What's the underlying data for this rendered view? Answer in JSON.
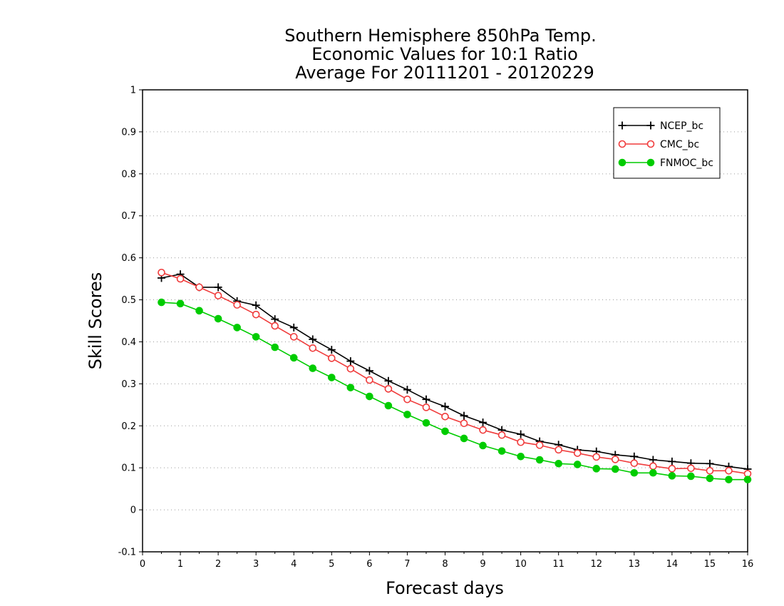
{
  "chart_data": {
    "type": "line",
    "title": [
      "Southern Hemisphere 850hPa Temp.",
      "Economic Values for 10:1 Ratio",
      "Average For 20111201 - 20120229"
    ],
    "xlabel": "Forecast days",
    "ylabel": "Skill Scores",
    "xlim": [
      0,
      16
    ],
    "ylim": [
      -0.1,
      1
    ],
    "xticks": [
      "0",
      "1",
      "2",
      "3",
      "4",
      "5",
      "6",
      "7",
      "8",
      "9",
      "10",
      "11",
      "12",
      "13",
      "14",
      "15",
      "16"
    ],
    "yticks": [
      "-0.1",
      "0",
      "0.1",
      "0.2",
      "0.3",
      "0.4",
      "0.5",
      "0.6",
      "0.7",
      "0.8",
      "0.9",
      "1"
    ],
    "grid": "horizontal dotted",
    "legend_position": "top-right",
    "x": [
      0.5,
      1,
      1.5,
      2,
      2.5,
      3,
      3.5,
      4,
      4.5,
      5,
      5.5,
      6,
      6.5,
      7,
      7.5,
      8,
      8.5,
      9,
      9.5,
      10,
      10.5,
      11,
      11.5,
      12,
      12.5,
      13,
      13.5,
      14,
      14.5,
      15,
      15.5,
      16
    ],
    "series": [
      {
        "name": "NCEP_bc",
        "color": "#000000",
        "marker": "plus",
        "values": [
          0.552,
          0.561,
          0.53,
          0.53,
          0.497,
          0.487,
          0.454,
          0.434,
          0.406,
          0.381,
          0.354,
          0.331,
          0.307,
          0.286,
          0.263,
          0.246,
          0.224,
          0.208,
          0.19,
          0.18,
          0.163,
          0.155,
          0.143,
          0.139,
          0.131,
          0.127,
          0.119,
          0.115,
          0.111,
          0.11,
          0.103,
          0.097
        ]
      },
      {
        "name": "CMC_bc",
        "color": "#f03c3c",
        "marker": "open-circle",
        "values": [
          0.565,
          0.55,
          0.53,
          0.51,
          0.488,
          0.465,
          0.438,
          0.412,
          0.385,
          0.361,
          0.336,
          0.309,
          0.288,
          0.263,
          0.244,
          0.222,
          0.206,
          0.19,
          0.178,
          0.161,
          0.154,
          0.143,
          0.135,
          0.126,
          0.12,
          0.111,
          0.104,
          0.098,
          0.099,
          0.093,
          0.093,
          0.086
        ]
      },
      {
        "name": "FNMOC_bc",
        "color": "#00cc00",
        "marker": "filled-circle",
        "values": [
          0.494,
          0.491,
          0.474,
          0.455,
          0.434,
          0.412,
          0.387,
          0.362,
          0.337,
          0.315,
          0.291,
          0.27,
          0.248,
          0.227,
          0.207,
          0.187,
          0.17,
          0.153,
          0.14,
          0.127,
          0.119,
          0.11,
          0.108,
          0.098,
          0.097,
          0.088,
          0.088,
          0.081,
          0.08,
          0.075,
          0.072,
          0.072
        ]
      }
    ]
  }
}
